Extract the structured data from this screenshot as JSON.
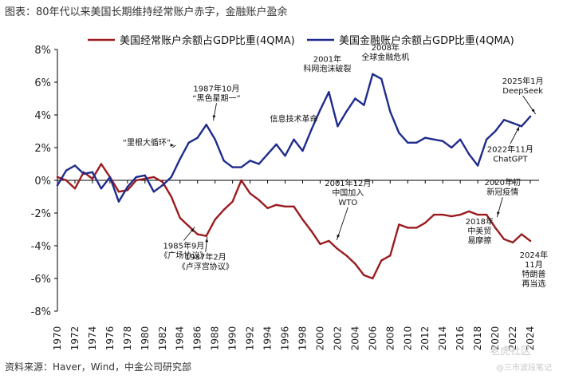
{
  "figure": {
    "title": "图表：80年代以来美国长期维持经常账户赤字，金融账户盈余",
    "source": "资料来源：Haver，Wind，中金公司研究部",
    "watermark_1": "老虎社区",
    "watermark_2": "@三市波段笔记"
  },
  "colors": {
    "current_account": "#9b1b1f",
    "financial_account": "#1f2b8c"
  },
  "chart_data": {
    "type": "line",
    "ylim": [
      -8,
      8
    ],
    "y_ticks": [
      8,
      6,
      4,
      2,
      0,
      -2,
      -4,
      -6,
      -8
    ],
    "y_tick_format": "percent",
    "xlim": [
      1970,
      2025
    ],
    "x_ticks": [
      1970,
      1972,
      1974,
      1976,
      1978,
      1980,
      1982,
      1984,
      1986,
      1988,
      1990,
      1992,
      1994,
      1996,
      1998,
      2000,
      2002,
      2004,
      2006,
      2008,
      2010,
      2012,
      2014,
      2016,
      2018,
      2020,
      2022,
      2024
    ],
    "legend_position": "top",
    "series": [
      {
        "name": "美国经常账户余额占GDP比重(4QMA)",
        "color_key": "current_account",
        "x": [
          1970,
          1971,
          1972,
          1973,
          1974,
          1975,
          1976,
          1977,
          1978,
          1979,
          1980,
          1981,
          1982,
          1983,
          1984,
          1985,
          1986,
          1987,
          1988,
          1989,
          1990,
          1991,
          1992,
          1993,
          1994,
          1995,
          1996,
          1997,
          1998,
          1999,
          2000,
          2001,
          2002,
          2003,
          2004,
          2005,
          2006,
          2007,
          2008,
          2009,
          2010,
          2011,
          2012,
          2013,
          2014,
          2015,
          2016,
          2017,
          2018,
          2019,
          2020,
          2021,
          2022,
          2023,
          2024
        ],
        "y": [
          0.2,
          0.0,
          -0.5,
          0.5,
          0.1,
          1.0,
          0.2,
          -0.7,
          -0.6,
          0.0,
          0.1,
          0.2,
          -0.1,
          -1.0,
          -2.3,
          -2.8,
          -3.3,
          -3.4,
          -2.4,
          -1.8,
          -1.3,
          0.0,
          -0.8,
          -1.2,
          -1.7,
          -1.5,
          -1.6,
          -1.6,
          -2.4,
          -3.1,
          -3.9,
          -3.7,
          -4.2,
          -4.6,
          -5.1,
          -5.8,
          -6.0,
          -4.9,
          -4.6,
          -2.7,
          -2.9,
          -2.9,
          -2.6,
          -2.1,
          -2.1,
          -2.2,
          -2.1,
          -1.9,
          -2.1,
          -2.1,
          -2.9,
          -3.6,
          -3.8,
          -3.3,
          -3.7
        ]
      },
      {
        "name": "美国金融账户余额占GDP比重(4QMA)",
        "color_key": "financial_account",
        "x": [
          1970,
          1971,
          1972,
          1973,
          1974,
          1975,
          1976,
          1977,
          1978,
          1979,
          1980,
          1981,
          1982,
          1983,
          1984,
          1985,
          1986,
          1987,
          1988,
          1989,
          1990,
          1991,
          1992,
          1993,
          1994,
          1995,
          1996,
          1997,
          1998,
          1999,
          2000,
          2001,
          2002,
          2003,
          2004,
          2005,
          2006,
          2007,
          2008,
          2009,
          2010,
          2011,
          2012,
          2013,
          2014,
          2015,
          2016,
          2017,
          2018,
          2019,
          2020,
          2021,
          2022,
          2023,
          2024
        ],
        "y": [
          -0.3,
          0.6,
          0.9,
          0.4,
          0.5,
          -0.5,
          0.2,
          -1.3,
          -0.4,
          0.2,
          0.3,
          -0.7,
          -0.3,
          0.2,
          1.3,
          2.3,
          2.6,
          3.4,
          2.5,
          1.2,
          0.8,
          0.8,
          1.2,
          1.0,
          1.6,
          2.2,
          1.5,
          2.5,
          1.8,
          3.1,
          4.3,
          5.4,
          3.3,
          4.2,
          5.0,
          4.6,
          6.5,
          6.2,
          4.2,
          2.9,
          2.3,
          2.3,
          2.6,
          2.5,
          2.4,
          2.0,
          2.5,
          1.6,
          0.9,
          2.5,
          3.0,
          3.7,
          3.5,
          3.3,
          3.9
        ]
      }
    ],
    "annotations": [
      {
        "lines": [
          "“里根大循环”"
        ],
        "series": 1,
        "x": 1983.5,
        "y": 2.0,
        "anchor": "end",
        "dx": -6,
        "dy": -3,
        "arrow": true
      },
      {
        "lines": [
          "1987年10月",
          "“黑色星期一”"
        ],
        "series": 1,
        "x": 1987.8,
        "y": 3.5,
        "anchor": "middle",
        "dx": 4,
        "dy": -28,
        "arrow": true
      },
      {
        "lines": [
          "信息技术革命"
        ],
        "series": 1,
        "x": 1997,
        "y": 3.2,
        "anchor": "middle",
        "dx": 0,
        "dy": -8,
        "arrow": false
      },
      {
        "lines": [
          "2001年",
          "科网泡沫破裂"
        ],
        "series": 1,
        "x": 2001,
        "y": 5.4,
        "anchor": "middle",
        "dx": -2,
        "dy": -26,
        "arrow": false
      },
      {
        "lines": [
          "2008年",
          "全球金融危机"
        ],
        "series": 1,
        "x": 2007,
        "y": 6.2,
        "anchor": "middle",
        "dx": 5,
        "dy": -24,
        "arrow": false
      },
      {
        "lines": [
          "2025年1月",
          "DeepSeek"
        ],
        "series": 1,
        "x": 2024.6,
        "y": 3.9,
        "anchor": "middle",
        "dx": -16,
        "dy": -29,
        "arrow": true
      },
      {
        "lines": [
          "2022年11月",
          "ChatGPT"
        ],
        "series": 1,
        "x": 2022.8,
        "y": 3.5,
        "anchor": "middle",
        "dx": -12,
        "dy": 36,
        "arrow": true
      },
      {
        "lines": [
          "1985年9月",
          "《广场协议》"
        ],
        "series": 0,
        "x": 1985.7,
        "y": -2.7,
        "anchor": "middle",
        "dx": -14,
        "dy": 30,
        "arrow": true
      },
      {
        "lines": [
          "1987年2月",
          "《卢浮宫协议》"
        ],
        "series": 0,
        "x": 1987.1,
        "y": -3.3,
        "anchor": "middle",
        "dx": -2,
        "dy": 32,
        "arrow": true
      },
      {
        "lines": [
          "2001年12月",
          "中国加入",
          "WTO"
        ],
        "series": 0,
        "x": 2001.9,
        "y": -3.8,
        "anchor": "middle",
        "dx": 14,
        "dy": -47,
        "arrow": true
      },
      {
        "lines": [
          "2018年",
          "中美贸",
          "易摩擦"
        ],
        "series": 0,
        "x": 2018.2,
        "y": -1.9,
        "anchor": "middle",
        "dx": 0,
        "dy": 16,
        "arrow": false
      },
      {
        "lines": [
          "2020年初",
          "新冠疫情"
        ],
        "series": 0,
        "x": 2020.2,
        "y": -2.4,
        "anchor": "middle",
        "dx": 7,
        "dy": -31,
        "arrow": true
      },
      {
        "lines": [
          "2024年",
          "11月",
          "特朗普",
          "再当选"
        ],
        "series": 0,
        "x": 2024.4,
        "y": -3.7,
        "anchor": "middle",
        "dx": 0,
        "dy": 21,
        "arrow": false
      }
    ]
  }
}
